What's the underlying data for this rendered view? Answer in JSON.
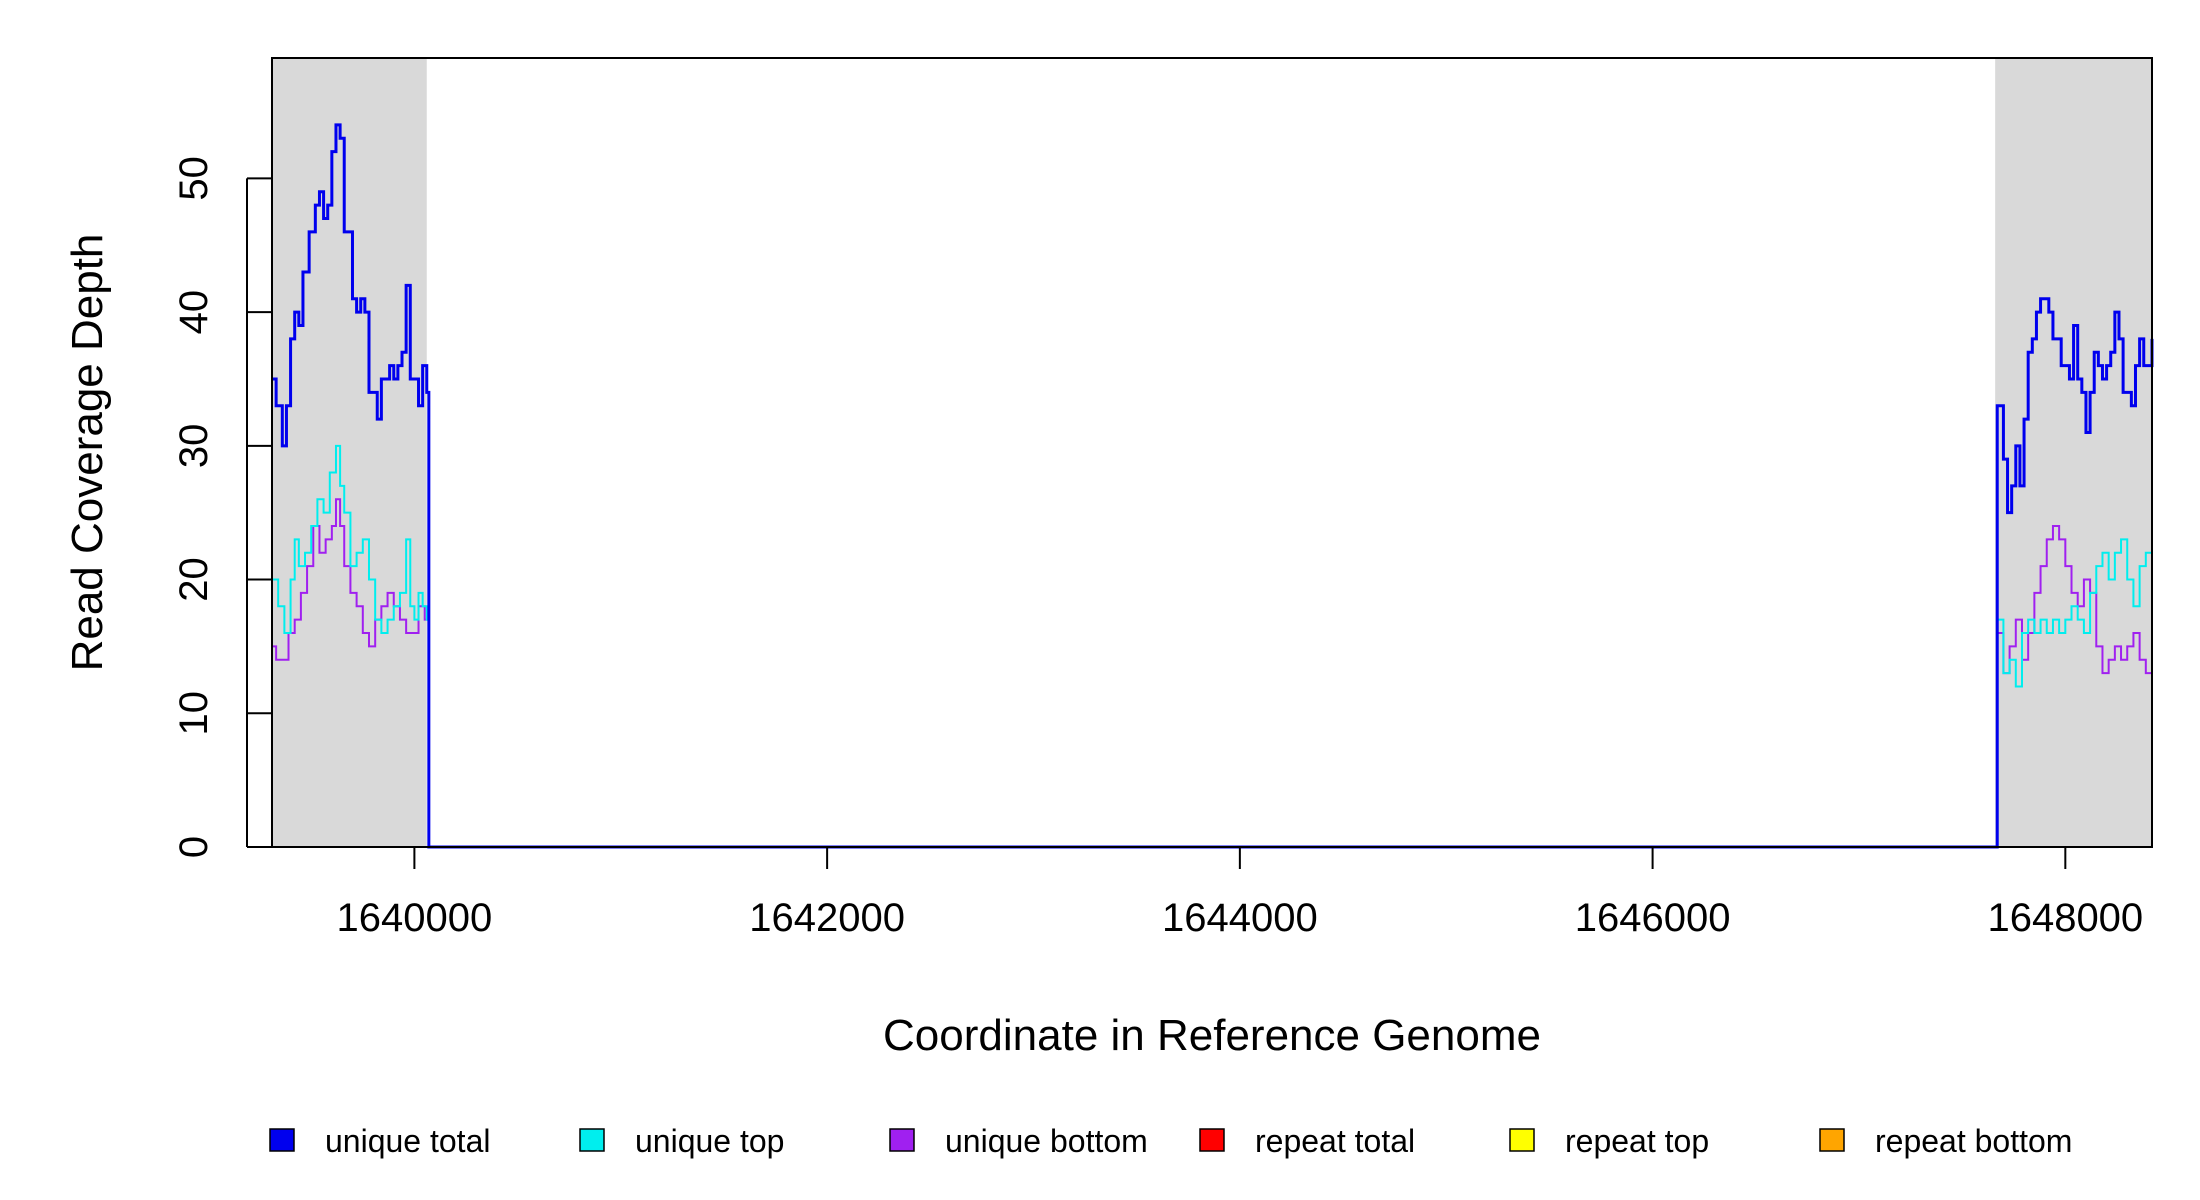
{
  "chart_data": {
    "type": "line",
    "title": "",
    "xlabel": "Coordinate in Reference Genome",
    "ylabel": "Read Coverage Depth",
    "xlim": [
      1639310,
      1648420
    ],
    "ylim": [
      0,
      59
    ],
    "x_ticks": [
      1640000,
      1642000,
      1644000,
      1646000,
      1648000
    ],
    "x_tick_labels": [
      "1640000",
      "1642000",
      "1644000",
      "1646000",
      "1648000"
    ],
    "y_ticks": [
      0,
      10,
      20,
      30,
      40,
      50
    ],
    "y_tick_labels": [
      "0",
      "10",
      "20",
      "30",
      "40",
      "50"
    ],
    "grid": false,
    "legend_position": "bottom",
    "shaded_regions": [
      {
        "x0": 1639310,
        "x1": 1640060,
        "color": "#d9d9d9"
      },
      {
        "x0": 1647660,
        "x1": 1648420,
        "color": "#d9d9d9"
      }
    ],
    "series": [
      {
        "name": "unique total",
        "color": "#0000ee",
        "x": [
          1639310,
          1639330,
          1639360,
          1639380,
          1639400,
          1639420,
          1639440,
          1639460,
          1639470,
          1639490,
          1639520,
          1639540,
          1639560,
          1639580,
          1639600,
          1639620,
          1639640,
          1639660,
          1639700,
          1639720,
          1639740,
          1639760,
          1639780,
          1639800,
          1639820,
          1639840,
          1639880,
          1639900,
          1639920,
          1639940,
          1639960,
          1639980,
          1640000,
          1640020,
          1640040,
          1640060,
          1640070,
          1647660,
          1647670,
          1647700,
          1647720,
          1647740,
          1647760,
          1647780,
          1647800,
          1647820,
          1647840,
          1647860,
          1647880,
          1647900,
          1647920,
          1647940,
          1647980,
          1648020,
          1648040,
          1648060,
          1648080,
          1648100,
          1648120,
          1648140,
          1648160,
          1648180,
          1648200,
          1648220,
          1648240,
          1648260,
          1648280,
          1648300,
          1648320,
          1648340,
          1648360,
          1648380,
          1648400,
          1648420
        ],
        "y": [
          35,
          33,
          30,
          33,
          38,
          40,
          39,
          43,
          43,
          46,
          48,
          49,
          47,
          48,
          52,
          54,
          53,
          46,
          41,
          40,
          41,
          40,
          34,
          34,
          32,
          35,
          36,
          35,
          36,
          37,
          42,
          35,
          35,
          33,
          36,
          34,
          0,
          0,
          33,
          29,
          25,
          27,
          30,
          27,
          32,
          37,
          38,
          40,
          41,
          41,
          40,
          38,
          36,
          35,
          39,
          35,
          34,
          31,
          34,
          37,
          36,
          35,
          36,
          37,
          40,
          38,
          34,
          34,
          33,
          36,
          38,
          36,
          36,
          38
        ],
        "stroke_width": 3
      },
      {
        "name": "unique top",
        "color": "#00eeee",
        "x": [
          1639310,
          1639340,
          1639370,
          1639400,
          1639420,
          1639440,
          1639470,
          1639500,
          1639530,
          1639560,
          1639590,
          1639620,
          1639640,
          1639660,
          1639690,
          1639720,
          1639750,
          1639780,
          1639810,
          1639840,
          1639870,
          1639900,
          1639930,
          1639960,
          1639980,
          1640000,
          1640020,
          1640040,
          1640060,
          1640070,
          1647660,
          1647670,
          1647700,
          1647730,
          1647760,
          1647790,
          1647820,
          1647850,
          1647880,
          1647910,
          1647940,
          1647970,
          1648000,
          1648030,
          1648060,
          1648090,
          1648120,
          1648150,
          1648180,
          1648210,
          1648240,
          1648270,
          1648300,
          1648330,
          1648360,
          1648390,
          1648420
        ],
        "y": [
          20,
          18,
          16,
          20,
          23,
          21,
          22,
          24,
          26,
          25,
          28,
          30,
          27,
          25,
          21,
          22,
          23,
          20,
          17,
          16,
          17,
          18,
          19,
          23,
          18,
          17,
          19,
          18,
          17,
          0,
          0,
          17,
          13,
          14,
          12,
          16,
          17,
          16,
          17,
          16,
          17,
          16,
          17,
          18,
          17,
          16,
          19,
          21,
          22,
          20,
          22,
          23,
          20,
          18,
          21,
          22,
          24
        ]
      },
      {
        "name": "unique bottom",
        "color": "#a020f0",
        "x": [
          1639310,
          1639330,
          1639360,
          1639390,
          1639420,
          1639450,
          1639480,
          1639510,
          1639540,
          1639570,
          1639600,
          1639620,
          1639640,
          1639660,
          1639690,
          1639720,
          1639750,
          1639780,
          1639810,
          1639840,
          1639870,
          1639900,
          1639930,
          1639960,
          1639990,
          1640020,
          1640050,
          1640070,
          1647660,
          1647670,
          1647700,
          1647730,
          1647760,
          1647790,
          1647820,
          1647850,
          1647880,
          1647910,
          1647940,
          1647970,
          1648000,
          1648030,
          1648060,
          1648090,
          1648120,
          1648150,
          1648180,
          1648210,
          1648240,
          1648270,
          1648300,
          1648330,
          1648360,
          1648390,
          1648420
        ],
        "y": [
          15,
          14,
          14,
          16,
          17,
          19,
          21,
          24,
          22,
          23,
          24,
          26,
          24,
          21,
          19,
          18,
          16,
          15,
          17,
          18,
          19,
          18,
          17,
          16,
          16,
          18,
          17,
          0,
          0,
          16,
          13,
          15,
          17,
          14,
          16,
          19,
          21,
          23,
          24,
          23,
          21,
          19,
          18,
          20,
          19,
          15,
          13,
          14,
          15,
          14,
          15,
          16,
          14,
          13,
          14
        ]
      },
      {
        "name": "repeat total",
        "color": "#ff0000",
        "x": [
          1639310,
          1648420
        ],
        "y": [
          0,
          0
        ]
      },
      {
        "name": "repeat top",
        "color": "#ffff00",
        "x": [
          1639310,
          1648420
        ],
        "y": [
          0,
          0
        ]
      },
      {
        "name": "repeat bottom",
        "color": "#ffa500",
        "x": [
          1639310,
          1648420
        ],
        "y": [
          0,
          0
        ]
      }
    ]
  }
}
